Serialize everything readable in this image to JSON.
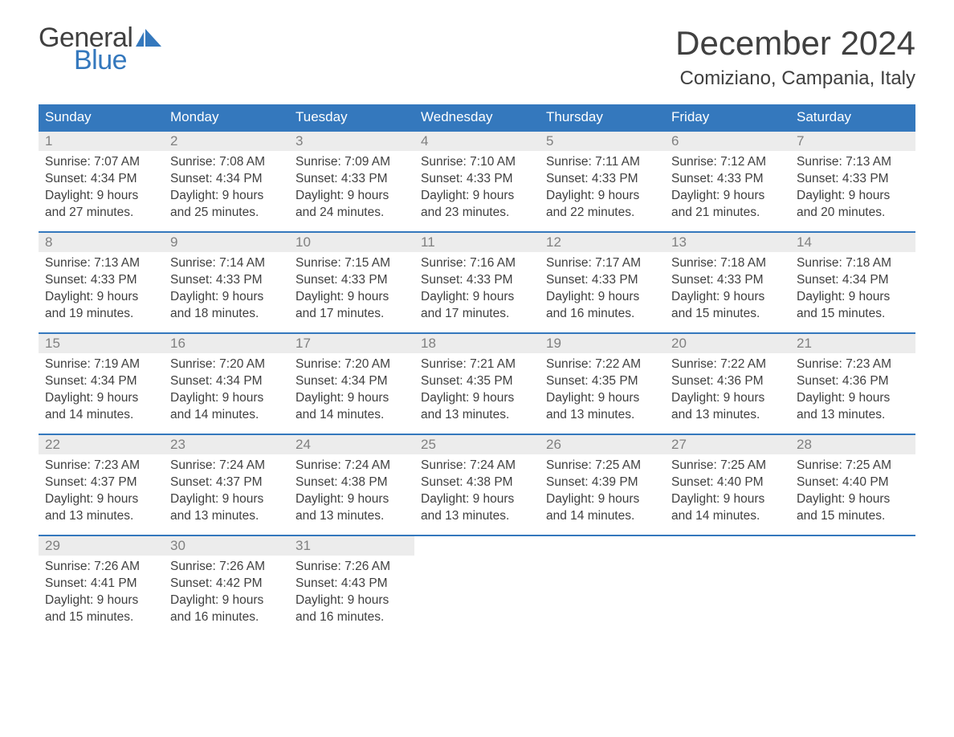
{
  "logo": {
    "general": "General",
    "blue": "Blue"
  },
  "title": "December 2024",
  "location": "Comiziano, Campania, Italy",
  "colors": {
    "header_bg": "#3478bd",
    "header_text": "#ffffff",
    "daynum_bg": "#ececec",
    "daynum_text": "#808080",
    "body_text": "#404040",
    "rule": "#3478bd",
    "logo_blue": "#3478bd"
  },
  "day_headers": [
    "Sunday",
    "Monday",
    "Tuesday",
    "Wednesday",
    "Thursday",
    "Friday",
    "Saturday"
  ],
  "weeks": [
    [
      {
        "n": "1",
        "sunrise": "Sunrise: 7:07 AM",
        "sunset": "Sunset: 4:34 PM",
        "d1": "Daylight: 9 hours",
        "d2": "and 27 minutes."
      },
      {
        "n": "2",
        "sunrise": "Sunrise: 7:08 AM",
        "sunset": "Sunset: 4:34 PM",
        "d1": "Daylight: 9 hours",
        "d2": "and 25 minutes."
      },
      {
        "n": "3",
        "sunrise": "Sunrise: 7:09 AM",
        "sunset": "Sunset: 4:33 PM",
        "d1": "Daylight: 9 hours",
        "d2": "and 24 minutes."
      },
      {
        "n": "4",
        "sunrise": "Sunrise: 7:10 AM",
        "sunset": "Sunset: 4:33 PM",
        "d1": "Daylight: 9 hours",
        "d2": "and 23 minutes."
      },
      {
        "n": "5",
        "sunrise": "Sunrise: 7:11 AM",
        "sunset": "Sunset: 4:33 PM",
        "d1": "Daylight: 9 hours",
        "d2": "and 22 minutes."
      },
      {
        "n": "6",
        "sunrise": "Sunrise: 7:12 AM",
        "sunset": "Sunset: 4:33 PM",
        "d1": "Daylight: 9 hours",
        "d2": "and 21 minutes."
      },
      {
        "n": "7",
        "sunrise": "Sunrise: 7:13 AM",
        "sunset": "Sunset: 4:33 PM",
        "d1": "Daylight: 9 hours",
        "d2": "and 20 minutes."
      }
    ],
    [
      {
        "n": "8",
        "sunrise": "Sunrise: 7:13 AM",
        "sunset": "Sunset: 4:33 PM",
        "d1": "Daylight: 9 hours",
        "d2": "and 19 minutes."
      },
      {
        "n": "9",
        "sunrise": "Sunrise: 7:14 AM",
        "sunset": "Sunset: 4:33 PM",
        "d1": "Daylight: 9 hours",
        "d2": "and 18 minutes."
      },
      {
        "n": "10",
        "sunrise": "Sunrise: 7:15 AM",
        "sunset": "Sunset: 4:33 PM",
        "d1": "Daylight: 9 hours",
        "d2": "and 17 minutes."
      },
      {
        "n": "11",
        "sunrise": "Sunrise: 7:16 AM",
        "sunset": "Sunset: 4:33 PM",
        "d1": "Daylight: 9 hours",
        "d2": "and 17 minutes."
      },
      {
        "n": "12",
        "sunrise": "Sunrise: 7:17 AM",
        "sunset": "Sunset: 4:33 PM",
        "d1": "Daylight: 9 hours",
        "d2": "and 16 minutes."
      },
      {
        "n": "13",
        "sunrise": "Sunrise: 7:18 AM",
        "sunset": "Sunset: 4:33 PM",
        "d1": "Daylight: 9 hours",
        "d2": "and 15 minutes."
      },
      {
        "n": "14",
        "sunrise": "Sunrise: 7:18 AM",
        "sunset": "Sunset: 4:34 PM",
        "d1": "Daylight: 9 hours",
        "d2": "and 15 minutes."
      }
    ],
    [
      {
        "n": "15",
        "sunrise": "Sunrise: 7:19 AM",
        "sunset": "Sunset: 4:34 PM",
        "d1": "Daylight: 9 hours",
        "d2": "and 14 minutes."
      },
      {
        "n": "16",
        "sunrise": "Sunrise: 7:20 AM",
        "sunset": "Sunset: 4:34 PM",
        "d1": "Daylight: 9 hours",
        "d2": "and 14 minutes."
      },
      {
        "n": "17",
        "sunrise": "Sunrise: 7:20 AM",
        "sunset": "Sunset: 4:34 PM",
        "d1": "Daylight: 9 hours",
        "d2": "and 14 minutes."
      },
      {
        "n": "18",
        "sunrise": "Sunrise: 7:21 AM",
        "sunset": "Sunset: 4:35 PM",
        "d1": "Daylight: 9 hours",
        "d2": "and 13 minutes."
      },
      {
        "n": "19",
        "sunrise": "Sunrise: 7:22 AM",
        "sunset": "Sunset: 4:35 PM",
        "d1": "Daylight: 9 hours",
        "d2": "and 13 minutes."
      },
      {
        "n": "20",
        "sunrise": "Sunrise: 7:22 AM",
        "sunset": "Sunset: 4:36 PM",
        "d1": "Daylight: 9 hours",
        "d2": "and 13 minutes."
      },
      {
        "n": "21",
        "sunrise": "Sunrise: 7:23 AM",
        "sunset": "Sunset: 4:36 PM",
        "d1": "Daylight: 9 hours",
        "d2": "and 13 minutes."
      }
    ],
    [
      {
        "n": "22",
        "sunrise": "Sunrise: 7:23 AM",
        "sunset": "Sunset: 4:37 PM",
        "d1": "Daylight: 9 hours",
        "d2": "and 13 minutes."
      },
      {
        "n": "23",
        "sunrise": "Sunrise: 7:24 AM",
        "sunset": "Sunset: 4:37 PM",
        "d1": "Daylight: 9 hours",
        "d2": "and 13 minutes."
      },
      {
        "n": "24",
        "sunrise": "Sunrise: 7:24 AM",
        "sunset": "Sunset: 4:38 PM",
        "d1": "Daylight: 9 hours",
        "d2": "and 13 minutes."
      },
      {
        "n": "25",
        "sunrise": "Sunrise: 7:24 AM",
        "sunset": "Sunset: 4:38 PM",
        "d1": "Daylight: 9 hours",
        "d2": "and 13 minutes."
      },
      {
        "n": "26",
        "sunrise": "Sunrise: 7:25 AM",
        "sunset": "Sunset: 4:39 PM",
        "d1": "Daylight: 9 hours",
        "d2": "and 14 minutes."
      },
      {
        "n": "27",
        "sunrise": "Sunrise: 7:25 AM",
        "sunset": "Sunset: 4:40 PM",
        "d1": "Daylight: 9 hours",
        "d2": "and 14 minutes."
      },
      {
        "n": "28",
        "sunrise": "Sunrise: 7:25 AM",
        "sunset": "Sunset: 4:40 PM",
        "d1": "Daylight: 9 hours",
        "d2": "and 15 minutes."
      }
    ],
    [
      {
        "n": "29",
        "sunrise": "Sunrise: 7:26 AM",
        "sunset": "Sunset: 4:41 PM",
        "d1": "Daylight: 9 hours",
        "d2": "and 15 minutes."
      },
      {
        "n": "30",
        "sunrise": "Sunrise: 7:26 AM",
        "sunset": "Sunset: 4:42 PM",
        "d1": "Daylight: 9 hours",
        "d2": "and 16 minutes."
      },
      {
        "n": "31",
        "sunrise": "Sunrise: 7:26 AM",
        "sunset": "Sunset: 4:43 PM",
        "d1": "Daylight: 9 hours",
        "d2": "and 16 minutes."
      },
      {
        "empty": true
      },
      {
        "empty": true
      },
      {
        "empty": true
      },
      {
        "empty": true
      }
    ]
  ]
}
